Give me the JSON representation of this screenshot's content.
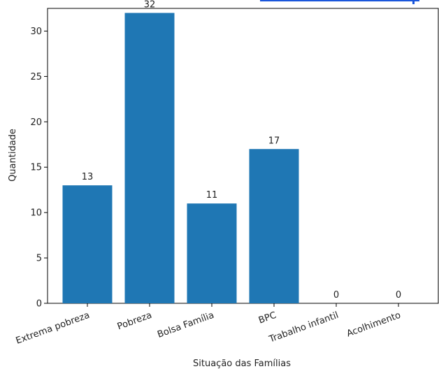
{
  "chart_data": {
    "type": "bar",
    "categories": [
      "Extrema pobreza",
      "Pobreza",
      "Bolsa Família",
      "BPC",
      "Trabalho infantil",
      "Acolhimento"
    ],
    "values": [
      13,
      32,
      11,
      17,
      0,
      0
    ],
    "data_labels": [
      "13",
      "32",
      "11",
      "17",
      "0",
      "0"
    ],
    "xlabel": "Situação das Famílias",
    "ylabel": "Quantidade",
    "ylim": [
      0,
      32.5
    ],
    "yticks": [
      0,
      5,
      10,
      15,
      20,
      25,
      30
    ],
    "grid": false,
    "bar_color": "#1f77b4",
    "top_accent_color": "#1a56db"
  }
}
